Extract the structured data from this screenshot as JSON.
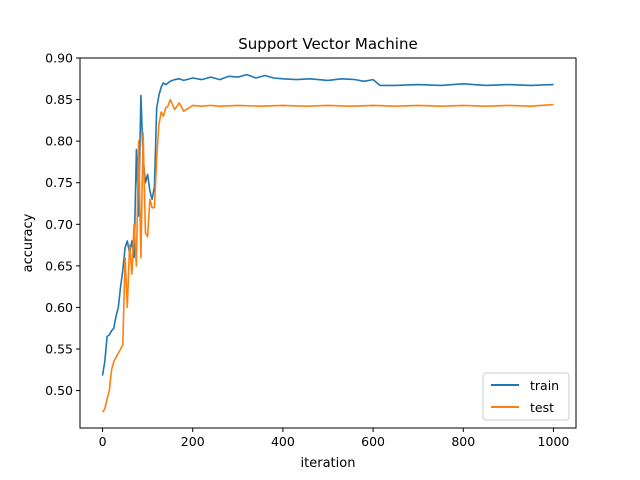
{
  "chart_data": {
    "type": "line",
    "title": "Support Vector Machine",
    "xlabel": "iteration",
    "ylabel": "accuracy",
    "xlim": [
      -50,
      1050
    ],
    "ylim": [
      0.455,
      0.9
    ],
    "xticks": [
      0,
      200,
      400,
      600,
      800,
      1000
    ],
    "xtick_labels": [
      "0",
      "200",
      "400",
      "600",
      "800",
      "1000"
    ],
    "yticks": [
      0.5,
      0.55,
      0.6,
      0.65,
      0.7,
      0.75,
      0.8,
      0.85,
      0.9
    ],
    "ytick_labels": [
      "0.50",
      "0.55",
      "0.60",
      "0.65",
      "0.70",
      "0.75",
      "0.80",
      "0.85",
      "0.90"
    ],
    "grid": false,
    "legend_position": "lower-right",
    "series": [
      {
        "name": "train",
        "color": "#1f77b4",
        "x": [
          0,
          5,
          10,
          15,
          20,
          25,
          30,
          35,
          40,
          45,
          50,
          55,
          60,
          65,
          70,
          75,
          80,
          85,
          90,
          95,
          100,
          105,
          110,
          115,
          120,
          125,
          130,
          135,
          140,
          150,
          160,
          170,
          180,
          200,
          220,
          240,
          260,
          280,
          300,
          320,
          340,
          360,
          380,
          400,
          430,
          460,
          500,
          530,
          560,
          580,
          600,
          615,
          650,
          700,
          750,
          800,
          850,
          900,
          950,
          1000
        ],
        "y": [
          0.518,
          0.535,
          0.565,
          0.567,
          0.572,
          0.575,
          0.59,
          0.6,
          0.625,
          0.645,
          0.672,
          0.68,
          0.665,
          0.68,
          0.66,
          0.79,
          0.71,
          0.855,
          0.78,
          0.75,
          0.76,
          0.74,
          0.73,
          0.745,
          0.84,
          0.855,
          0.865,
          0.87,
          0.868,
          0.872,
          0.874,
          0.875,
          0.873,
          0.876,
          0.874,
          0.877,
          0.874,
          0.878,
          0.877,
          0.88,
          0.876,
          0.879,
          0.876,
          0.875,
          0.874,
          0.875,
          0.873,
          0.875,
          0.874,
          0.872,
          0.874,
          0.867,
          0.867,
          0.868,
          0.867,
          0.869,
          0.867,
          0.868,
          0.867,
          0.868
        ]
      },
      {
        "name": "test",
        "color": "#ff7f0e",
        "x": [
          0,
          5,
          10,
          15,
          20,
          25,
          30,
          35,
          40,
          45,
          50,
          55,
          60,
          65,
          70,
          75,
          80,
          85,
          90,
          95,
          100,
          105,
          110,
          115,
          120,
          125,
          130,
          135,
          140,
          145,
          150,
          160,
          170,
          180,
          200,
          220,
          240,
          260,
          300,
          350,
          400,
          450,
          500,
          550,
          600,
          650,
          700,
          750,
          800,
          850,
          900,
          950,
          1000
        ],
        "y": [
          0.474,
          0.478,
          0.49,
          0.5,
          0.525,
          0.535,
          0.54,
          0.545,
          0.55,
          0.555,
          0.66,
          0.6,
          0.675,
          0.64,
          0.7,
          0.65,
          0.8,
          0.66,
          0.81,
          0.69,
          0.685,
          0.73,
          0.72,
          0.72,
          0.78,
          0.82,
          0.835,
          0.83,
          0.84,
          0.842,
          0.85,
          0.838,
          0.846,
          0.836,
          0.843,
          0.842,
          0.843,
          0.842,
          0.843,
          0.842,
          0.843,
          0.842,
          0.843,
          0.842,
          0.843,
          0.842,
          0.843,
          0.842,
          0.843,
          0.842,
          0.843,
          0.842,
          0.844
        ]
      }
    ]
  }
}
